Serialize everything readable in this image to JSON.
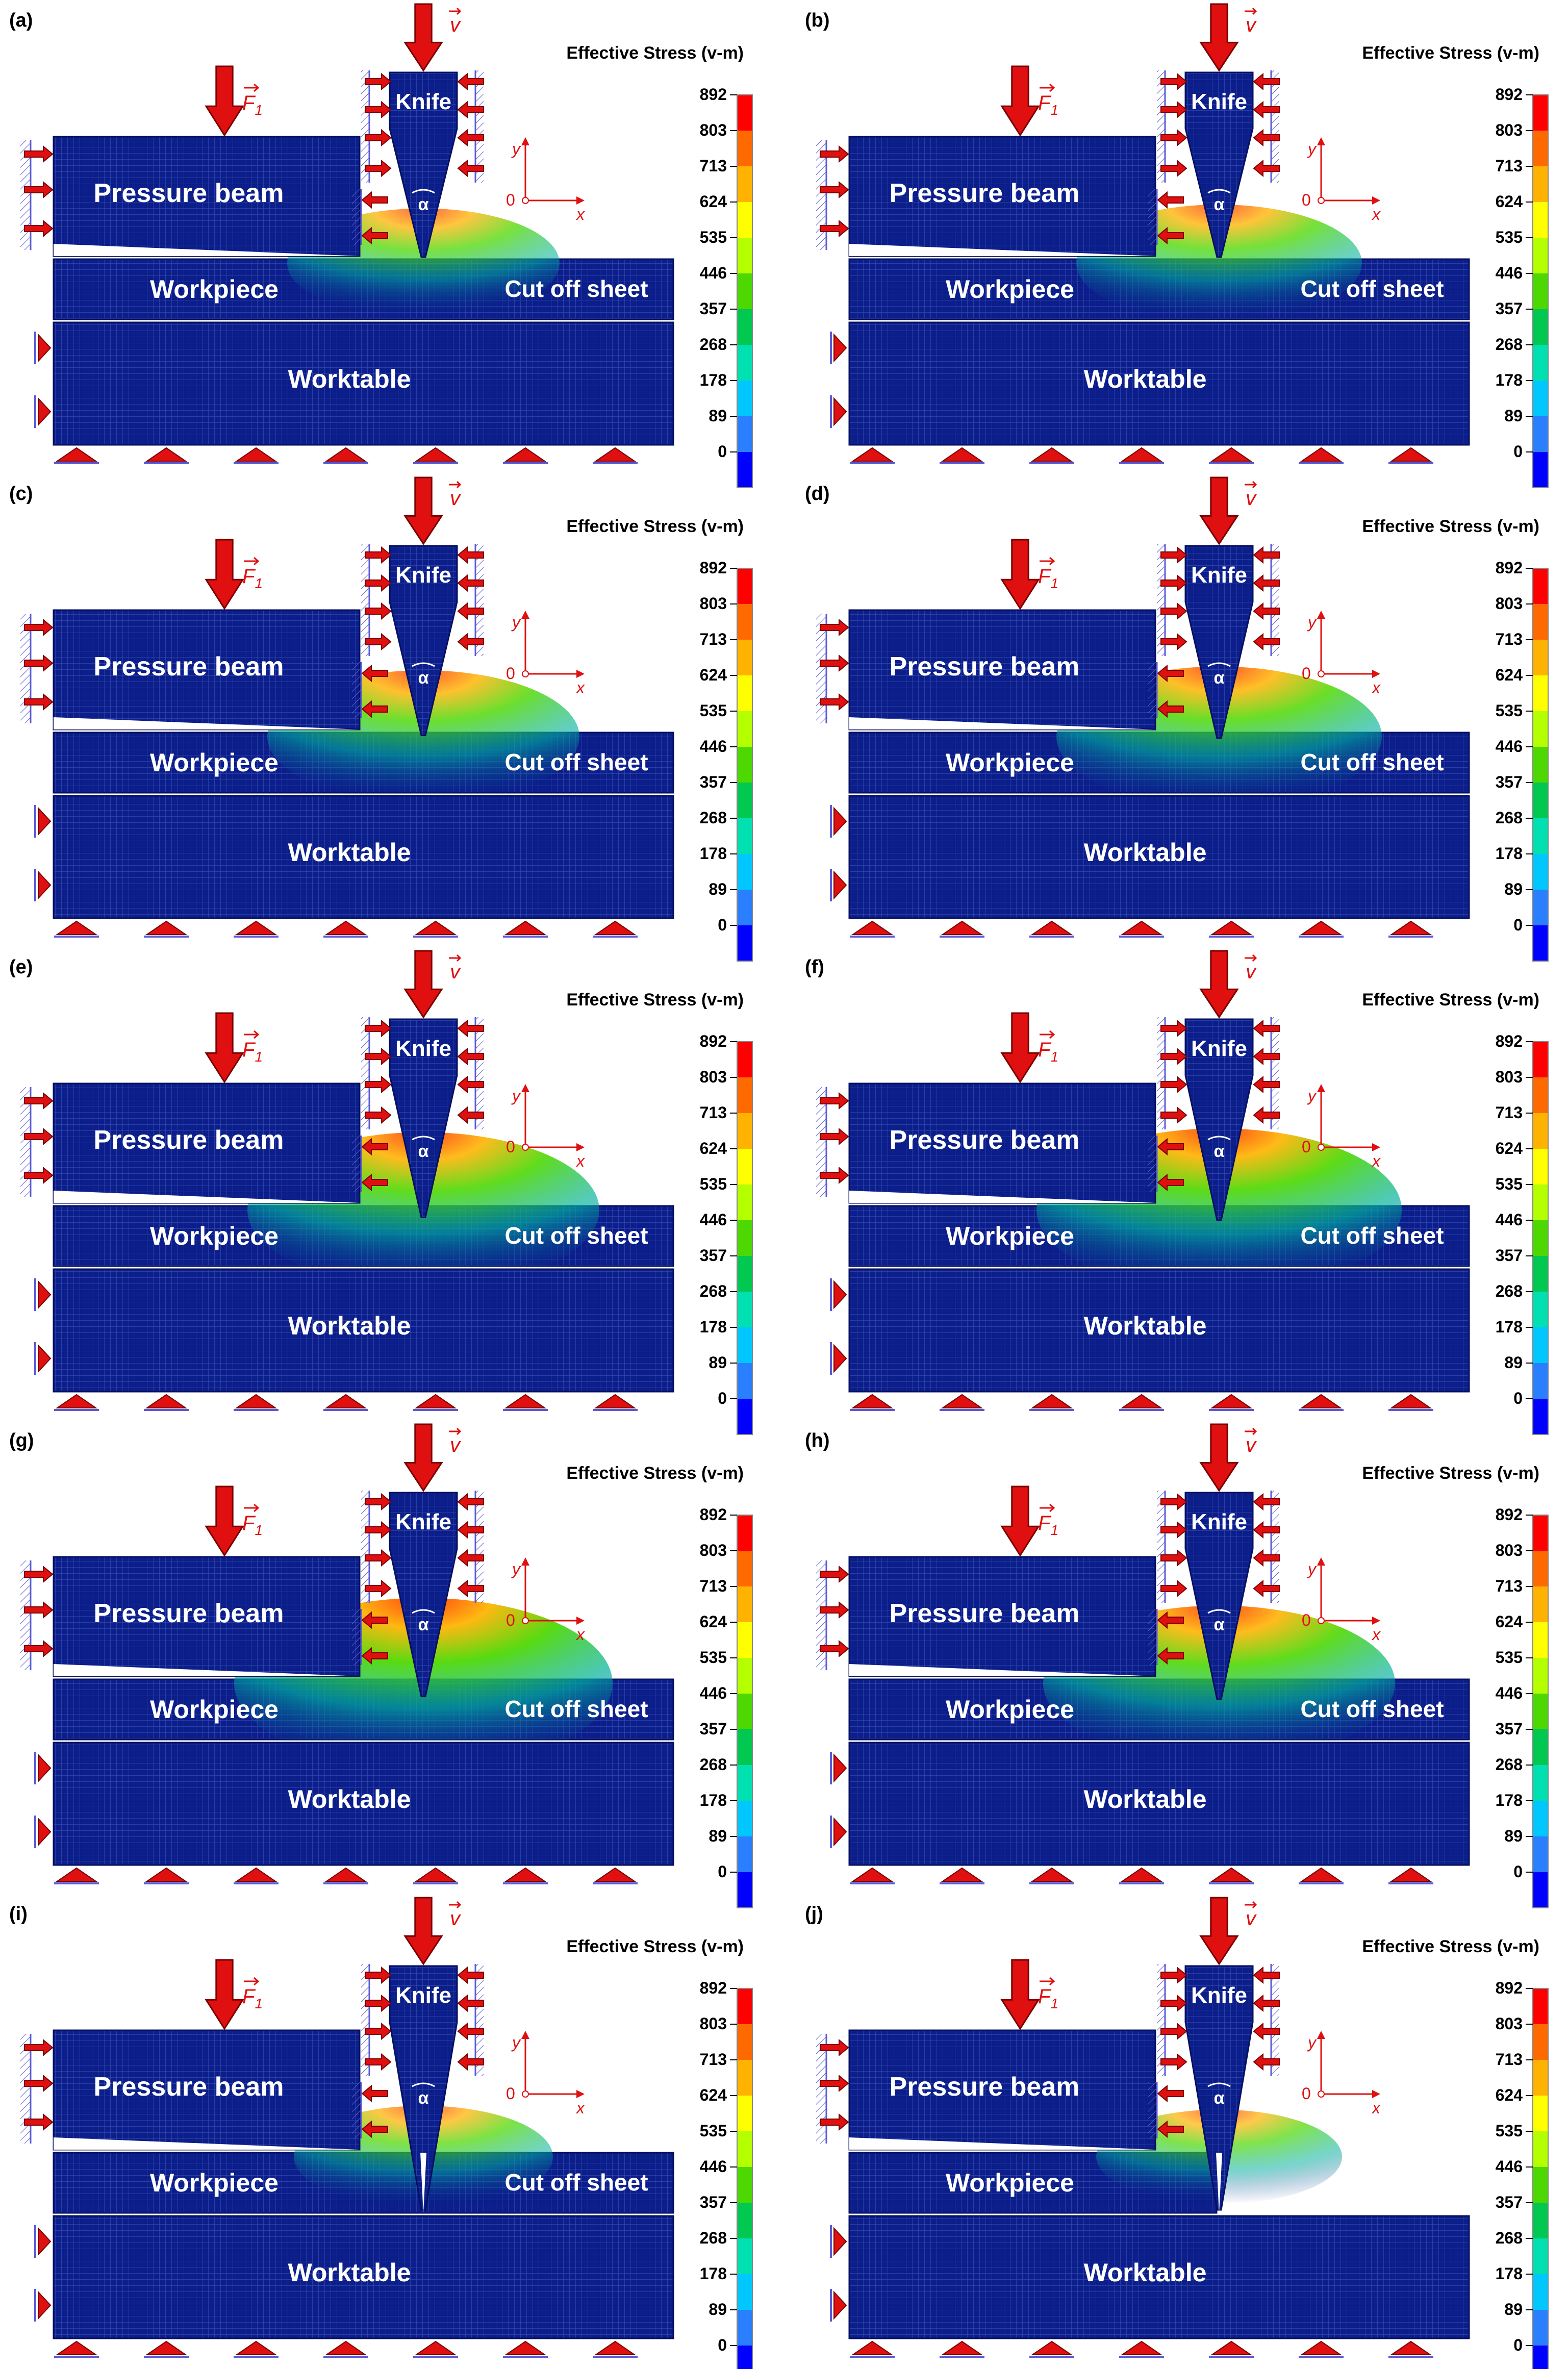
{
  "figure": {
    "legend_title": "Effective Stress (v-m)",
    "legend_values": [
      "892",
      "803",
      "713",
      "624",
      "535",
      "446",
      "357",
      "268",
      "178",
      "89",
      "0"
    ],
    "legend_colors": [
      "#ff0000",
      "#ff6a00",
      "#ffb300",
      "#ffff00",
      "#b4ff00",
      "#4cd800",
      "#00c850",
      "#00e0b0",
      "#00c8ff",
      "#2a7fff",
      "#0000ff"
    ],
    "mesh_color": "#0b1e8a",
    "labels": {
      "knife": "Knife",
      "pressure_beam": "Pressure beam",
      "workpiece": "Workpiece",
      "cut_off_sheet": "Cut off sheet",
      "worktable": "Worktable",
      "force_symbol": "F",
      "force_subscript": "1",
      "velocity_symbol": "v",
      "angle_symbol": "α",
      "axis_y": "y",
      "axis_x": "x",
      "origin": "0"
    },
    "panels": [
      {
        "tag": "(a)",
        "knife_depth": 0.0,
        "sheet_present": true,
        "stress_level": 0.45
      },
      {
        "tag": "(b)",
        "knife_depth": 0.0,
        "sheet_present": true,
        "stress_level": 0.5
      },
      {
        "tag": "(c)",
        "knife_depth": 0.05,
        "sheet_present": true,
        "stress_level": 0.6
      },
      {
        "tag": "(d)",
        "knife_depth": 0.1,
        "sheet_present": true,
        "stress_level": 0.65
      },
      {
        "tag": "(e)",
        "knife_depth": 0.2,
        "sheet_present": true,
        "stress_level": 0.75
      },
      {
        "tag": "(f)",
        "knife_depth": 0.25,
        "sheet_present": true,
        "stress_level": 0.8
      },
      {
        "tag": "(g)",
        "knife_depth": 0.3,
        "sheet_present": true,
        "stress_level": 0.85
      },
      {
        "tag": "(h)",
        "knife_depth": 0.35,
        "sheet_present": true,
        "stress_level": 0.75
      },
      {
        "tag": "(i)",
        "knife_depth": 1.0,
        "sheet_present": true,
        "stress_level": 0.4
      },
      {
        "tag": "(j)",
        "knife_depth": 1.0,
        "sheet_present": false,
        "stress_level": 0.35
      }
    ]
  }
}
